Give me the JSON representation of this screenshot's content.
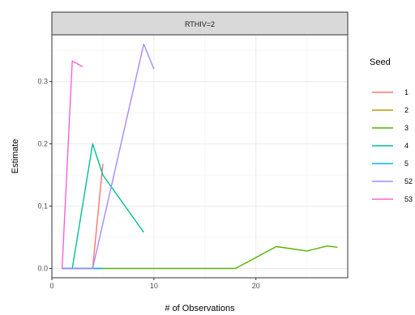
{
  "chart_data": {
    "type": "line",
    "facet_label": "RTHIV=2",
    "xlabel": "# of Observations",
    "ylabel": "Estimate",
    "xlim": [
      0,
      29
    ],
    "ylim": [
      -0.015,
      0.375
    ],
    "x_ticks": [
      0,
      10,
      20
    ],
    "y_ticks": [
      0.0,
      0.1,
      0.2,
      0.3
    ],
    "y_tick_labels": [
      "0.0",
      "0.1",
      "0.2",
      "0.3"
    ],
    "x_tick_labels": [
      "0",
      "10",
      "20"
    ],
    "grid": true,
    "legend": {
      "title": "Seed",
      "position": "right"
    },
    "series": [
      {
        "name": "1",
        "color": "#F8766D",
        "x": [
          1,
          4,
          5
        ],
        "y": [
          0,
          0,
          0.168
        ]
      },
      {
        "name": "2",
        "color": "#C49A00",
        "x": [
          1,
          4
        ],
        "y": [
          0,
          0
        ]
      },
      {
        "name": "3",
        "color": "#53B400",
        "x": [
          1,
          5,
          18,
          22,
          25,
          27,
          28
        ],
        "y": [
          0,
          0,
          0,
          0.035,
          0.028,
          0.036,
          0.034
        ]
      },
      {
        "name": "4",
        "color": "#00C094",
        "x": [
          1,
          2,
          4,
          5,
          9
        ],
        "y": [
          0,
          0,
          0.2,
          0.15,
          0.058
        ]
      },
      {
        "name": "5",
        "color": "#00B6EB",
        "x": [
          1,
          5
        ],
        "y": [
          0,
          0
        ]
      },
      {
        "name": "52",
        "color": "#A58AFF",
        "x": [
          1,
          4,
          9,
          10
        ],
        "y": [
          0,
          0,
          0.36,
          0.32
        ]
      },
      {
        "name": "53",
        "color": "#FB61D7",
        "x": [
          1,
          2,
          3
        ],
        "y": [
          0,
          0.333,
          0.324
        ]
      }
    ]
  }
}
